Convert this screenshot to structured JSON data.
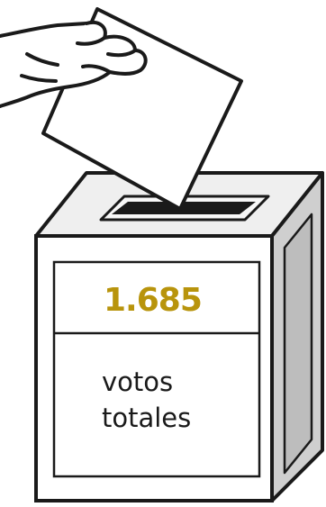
{
  "ballot_box": {
    "count": "1.685",
    "caption_line1": "votos",
    "caption_line2": "totales"
  },
  "colors": {
    "count_text": "#b8940c",
    "outline": "#1a1a1a",
    "box_face": "#ffffff",
    "box_top": "#efefef",
    "box_side": "#cfcfcf",
    "box_side_inner": "#bdbdbd",
    "slot": "#1a1a1a",
    "ballot": "#ffffff"
  },
  "icons": {
    "hand": "hand-icon",
    "ballot": "ballot-paper-icon",
    "box": "ballot-box-icon"
  }
}
